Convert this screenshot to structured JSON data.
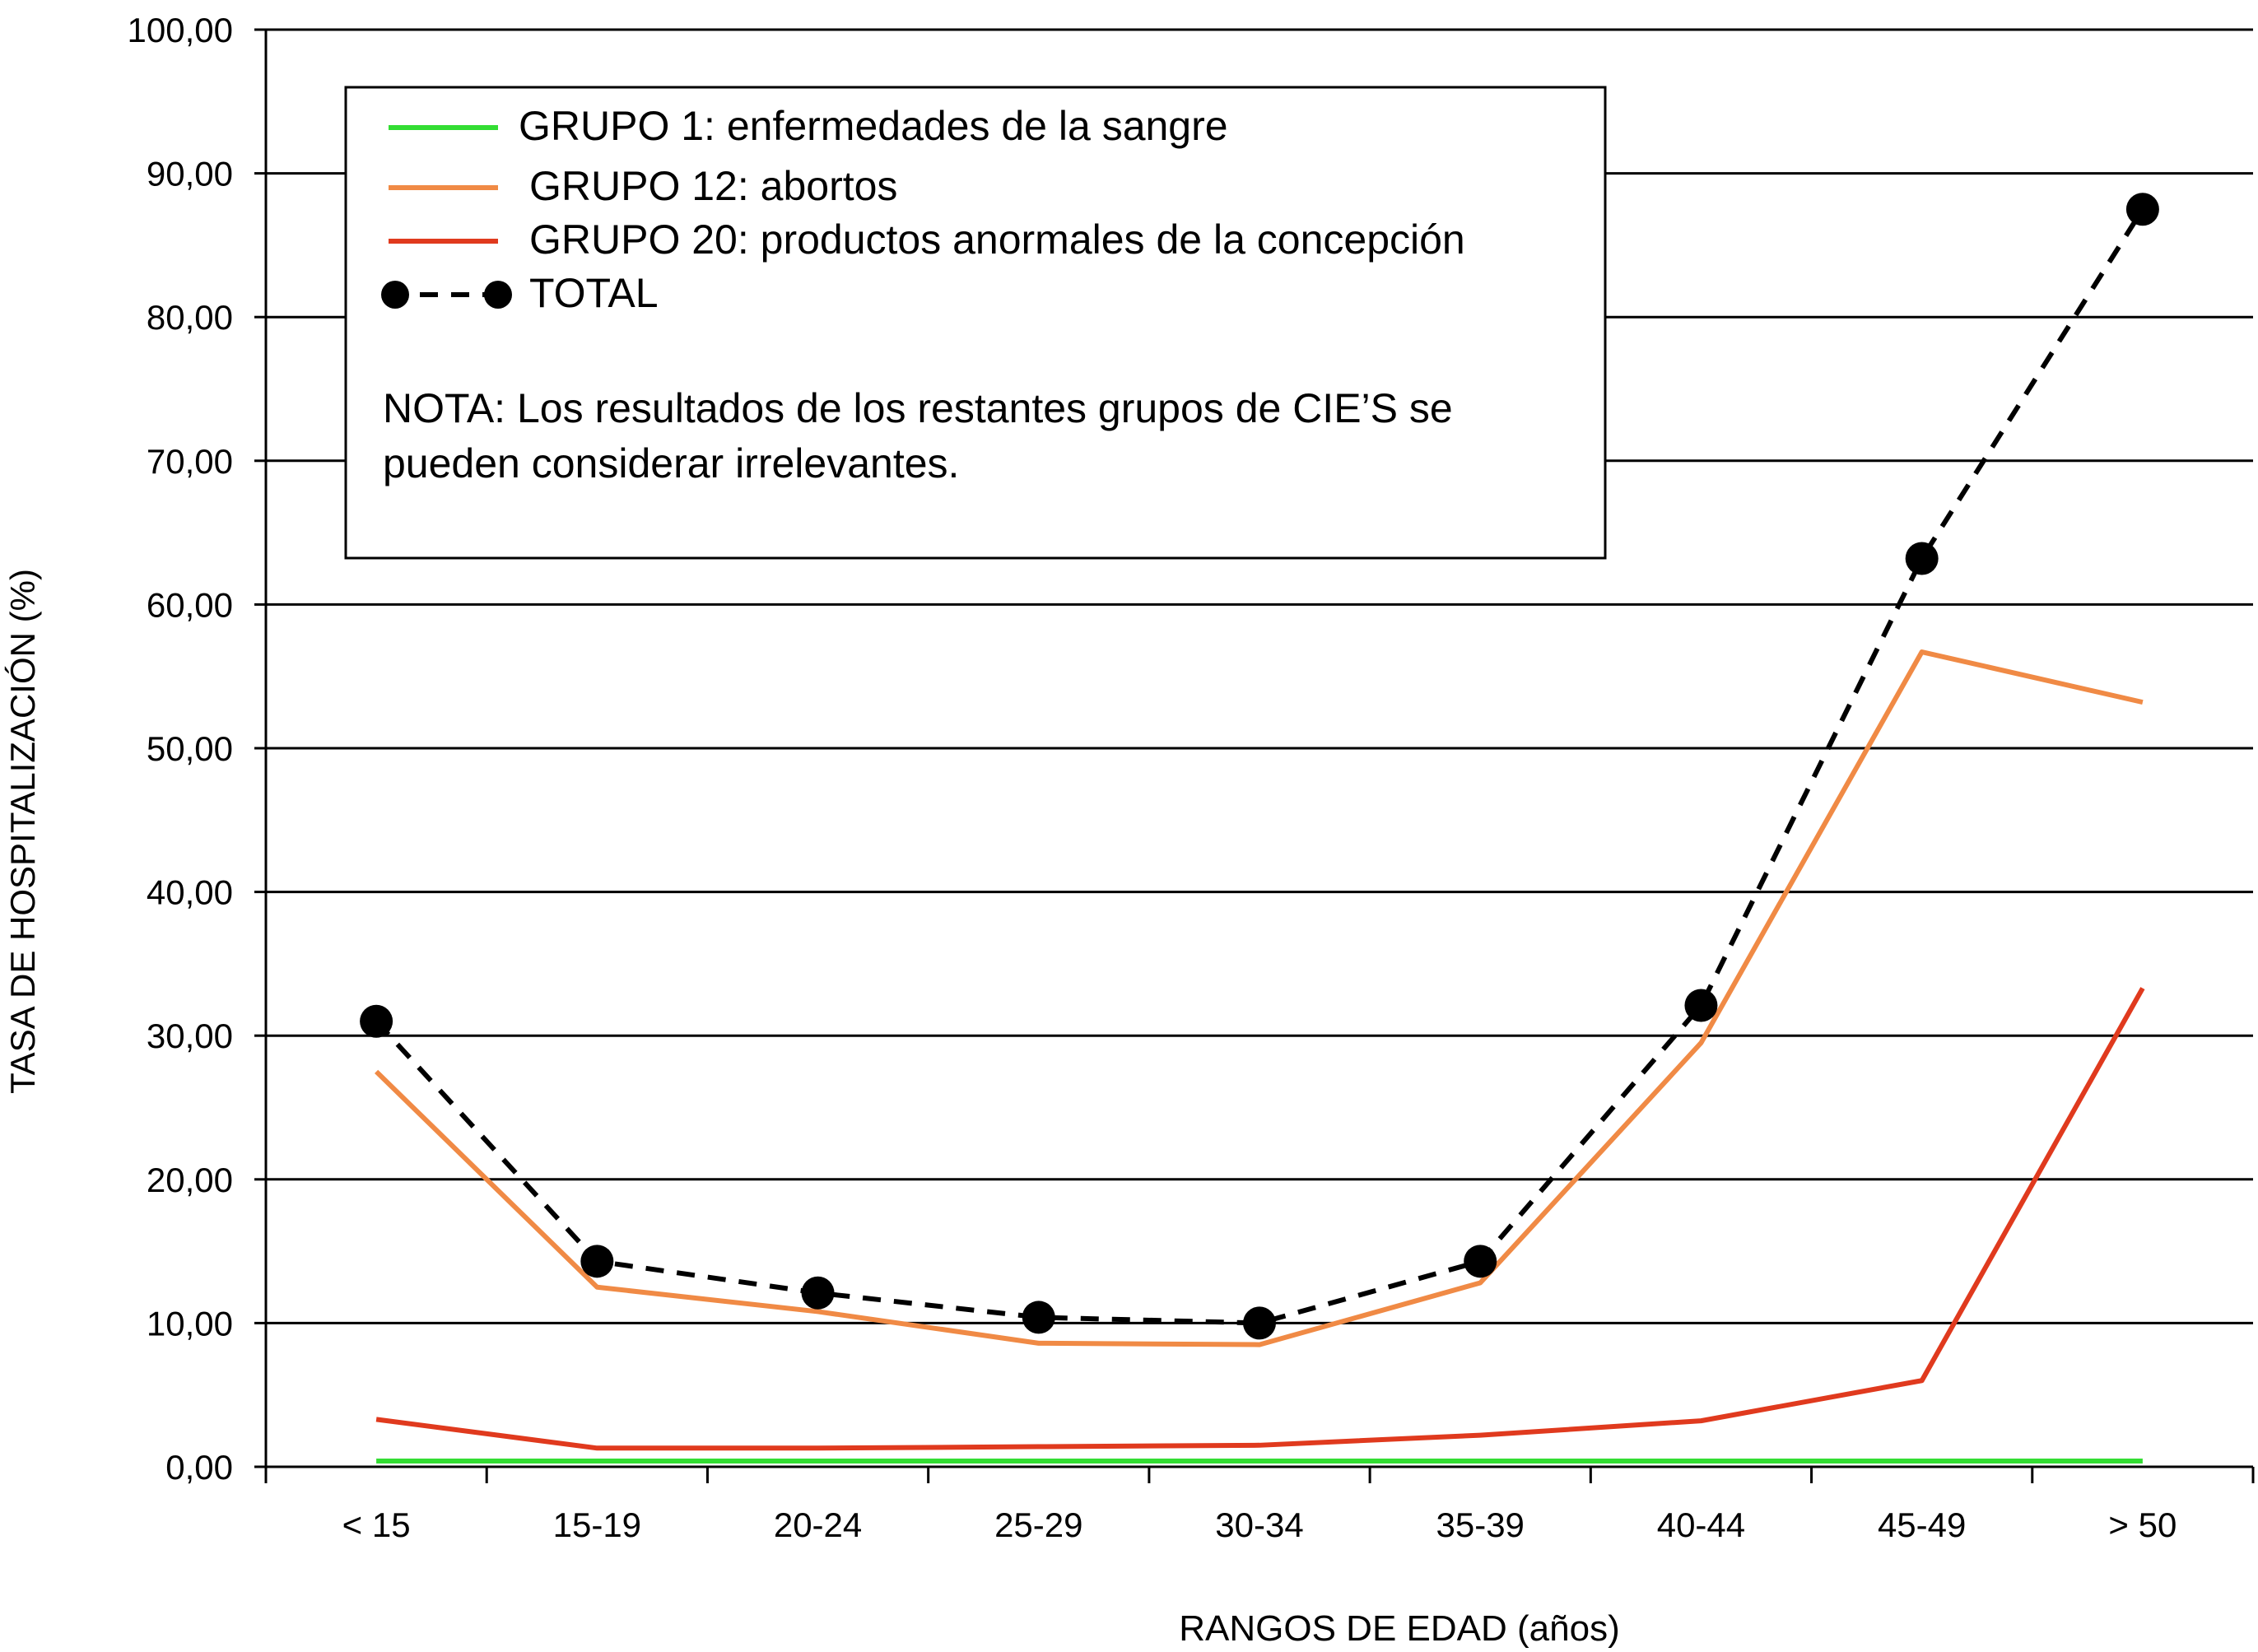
{
  "chart_data": {
    "type": "line",
    "xlabel": "RANGOS DE EDAD (años)",
    "ylabel": "TASA DE HOSPITALIZACIÓN (%)",
    "ylim": [
      0,
      100
    ],
    "yticks": [
      "0,00",
      "10,00",
      "20,00",
      "30,00",
      "40,00",
      "50,00",
      "60,00",
      "70,00",
      "80,00",
      "90,00",
      "100,00"
    ],
    "categories": [
      "< 15",
      "15-19",
      "20-24",
      "25-29",
      "30-34",
      "35-39",
      "40-44",
      "45-49",
      "> 50"
    ],
    "grid": true,
    "legend_position": "top-left",
    "series": [
      {
        "name": "GRUPO 1: enfermedades de la sangre",
        "color": "#33dd33",
        "style": "solid",
        "values": [
          0.4,
          0.4,
          0.4,
          0.4,
          0.4,
          0.4,
          0.4,
          0.4,
          0.4
        ]
      },
      {
        "name": "GRUPO 12: abortos",
        "color": "#f08a45",
        "style": "solid",
        "values": [
          27.5,
          12.5,
          10.8,
          8.6,
          8.5,
          12.8,
          29.5,
          56.7,
          53.2
        ]
      },
      {
        "name": "GRUPO 20: productos anormales de la concepción",
        "color": "#e03a1e",
        "style": "solid",
        "values": [
          3.3,
          1.3,
          1.3,
          1.4,
          1.5,
          2.2,
          3.2,
          6.0,
          33.3
        ]
      },
      {
        "name": "TOTAL",
        "color": "#000000",
        "style": "dashed-markers",
        "values": [
          31.0,
          14.3,
          12.1,
          10.4,
          10.0,
          14.3,
          32.1,
          63.2,
          87.5
        ]
      }
    ],
    "note": "NOTA: Los resultados de los restantes grupos de CIE’S se pueden considerar irrelevantes."
  }
}
